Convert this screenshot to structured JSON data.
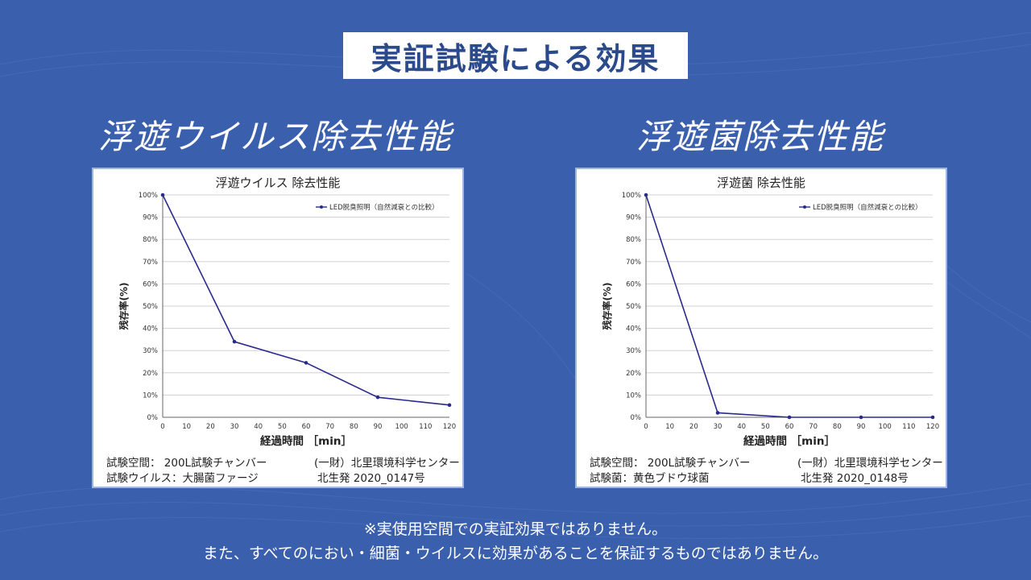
{
  "banner": "実証試験による効果",
  "left": {
    "heading": "浮遊ウイルス除去性能",
    "chart_title": "浮遊ウイルス 除去性能",
    "test_space": "試験空間： 200L試験チャンバー",
    "test_subject": "試験ウイルス：大腸菌ファージ",
    "org": "(一財）北里環境科学センター",
    "report": "北生発 2020_0147号"
  },
  "right": {
    "heading": "浮遊菌除去性能",
    "chart_title": "浮遊菌 除去性能",
    "test_space": "試験空間： 200L試験チャンバー",
    "test_subject": "試験菌：黄色ブドウ球菌",
    "org": "(一財）北里環境科学センター",
    "report": "北生発 2020_0148号"
  },
  "notes": {
    "line1": "※実使用空間での実証効果ではありません。",
    "line2": "また、すべてのにおい・細菌・ウイルスに効果があることを保証するものではありません。"
  },
  "colors": {
    "background": "#3a5fad",
    "series": "#2a2a8c",
    "banner_text": "#2b4a8c"
  },
  "chart_data": [
    {
      "type": "line",
      "title": "浮遊ウイルス 除去性能",
      "xlabel": "経過時間 ［min］",
      "ylabel": "残存率(%)",
      "x": [
        0,
        30,
        60,
        90,
        120
      ],
      "series": [
        {
          "name": "LED脱臭照明（自然減衰との比較）",
          "values": [
            100,
            34,
            24.5,
            9,
            5.5
          ]
        }
      ],
      "xlim": [
        0,
        120
      ],
      "ylim": [
        0,
        100
      ],
      "xticks": [
        "0",
        "10",
        "20",
        "30",
        "40",
        "50",
        "60",
        "70",
        "80",
        "90",
        "100",
        "110",
        "120"
      ],
      "yticks": [
        "0%",
        "10%",
        "20%",
        "30%",
        "40%",
        "50%",
        "60%",
        "70%",
        "80%",
        "90%",
        "100%"
      ],
      "grid": true,
      "legend": "top-right"
    },
    {
      "type": "line",
      "title": "浮遊菌 除去性能",
      "xlabel": "経過時間 ［min］",
      "ylabel": "残存率(%)",
      "x": [
        0,
        30,
        60,
        90,
        120
      ],
      "series": [
        {
          "name": "LED脱臭照明（自然減衰との比較）",
          "values": [
            100,
            2,
            0,
            0,
            0
          ]
        }
      ],
      "xlim": [
        0,
        120
      ],
      "ylim": [
        0,
        100
      ],
      "xticks": [
        "0",
        "10",
        "20",
        "30",
        "40",
        "50",
        "60",
        "70",
        "80",
        "90",
        "100",
        "110",
        "120"
      ],
      "yticks": [
        "0%",
        "10%",
        "20%",
        "30%",
        "40%",
        "50%",
        "60%",
        "70%",
        "80%",
        "90%",
        "100%"
      ],
      "grid": true,
      "legend": "top-right"
    }
  ]
}
